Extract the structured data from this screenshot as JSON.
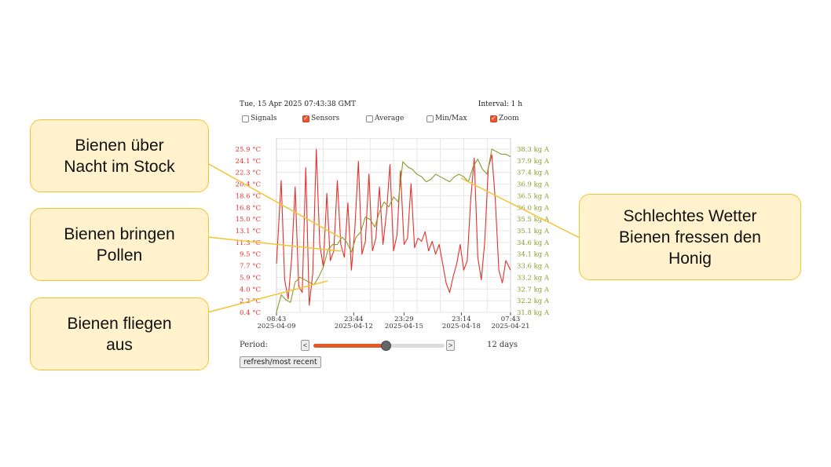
{
  "header": {
    "timestamp": "Tue, 15 Apr 2025 07:43:38 GMT",
    "interval": "Interval: 1 h"
  },
  "options": [
    {
      "label": "Signals",
      "checked": false
    },
    {
      "label": "Sensors",
      "checked": true
    },
    {
      "label": "Average",
      "checked": false
    },
    {
      "label": "Min/Max",
      "checked": false
    },
    {
      "label": "Zoom",
      "checked": true
    }
  ],
  "controls": {
    "period_label": "Period:",
    "prev": "<",
    "next": ">",
    "days": "12 days",
    "slider_fraction": 0.55,
    "refresh": "refresh/most recent"
  },
  "callouts": {
    "night": "Bienen über\nNacht im Stock",
    "pollen": "Bienen bringen\nPollen",
    "fly": "Bienen fliegen\naus",
    "weather": "Schlechtes Wetter\nBienen fressen den\nHonig"
  },
  "chart_data": {
    "type": "line",
    "title": "",
    "colors": {
      "temperature": "#e4302b",
      "weight": "#8a9a2a",
      "grid": "#e6e6e6"
    },
    "y_left_ticks": [
      "25.9 °C",
      "24.1 °C",
      "22.3 °C",
      "20.4 °C",
      "18.6 °C",
      "16.8 °C",
      "15.0 °C",
      "13.1 °C",
      "11.3 °C",
      "9.5 °C",
      "7.7 °C",
      "5.9 °C",
      "4.0 °C",
      "2.2 °C",
      "0.4 °C"
    ],
    "y_right_ticks": [
      "38.3 kg A",
      "37.9 kg A",
      "37.4 kg A",
      "36.9 kg A",
      "36.5 kg A",
      "36.0 kg A",
      "35.5 kg A",
      "35.1 kg A",
      "34.6 kg A",
      "34.1 kg A",
      "33.6 kg A",
      "33.2 kg A",
      "32.7 kg A",
      "32.2 kg A",
      "31.8 kg A"
    ],
    "x_ticks": [
      {
        "t": 0,
        "time": "08:43",
        "date": "2025-04-09"
      },
      {
        "t": 0.33,
        "time": "23:44",
        "date": "2025-04-12"
      },
      {
        "t": 0.545,
        "time": "23:29",
        "date": "2025-04-15"
      },
      {
        "t": 0.79,
        "time": "23:14",
        "date": "2025-04-18"
      },
      {
        "t": 1,
        "time": "07:43",
        "date": "2025-04-21"
      }
    ],
    "ylim_temp": [
      0.4,
      25.9
    ],
    "ylim_weight": [
      31.8,
      38.3
    ],
    "series": [
      {
        "key": "temperature",
        "unit": "°C",
        "x": [
          0,
          0.02,
          0.035,
          0.05,
          0.065,
          0.08,
          0.095,
          0.11,
          0.125,
          0.14,
          0.155,
          0.17,
          0.185,
          0.2,
          0.215,
          0.23,
          0.245,
          0.26,
          0.275,
          0.29,
          0.305,
          0.32,
          0.335,
          0.35,
          0.365,
          0.38,
          0.395,
          0.41,
          0.425,
          0.44,
          0.455,
          0.47,
          0.485,
          0.5,
          0.515,
          0.53,
          0.545,
          0.56,
          0.575,
          0.59,
          0.605,
          0.62,
          0.635,
          0.65,
          0.665,
          0.68,
          0.695,
          0.71,
          0.725,
          0.74,
          0.755,
          0.77,
          0.785,
          0.8,
          0.815,
          0.83,
          0.845,
          0.86,
          0.875,
          0.89,
          0.905,
          0.92,
          0.935,
          0.95,
          0.965,
          0.98,
          1
        ],
        "values": [
          8.0,
          21.0,
          5.5,
          2.5,
          9.0,
          20.0,
          4.5,
          3.5,
          23.0,
          1.5,
          6.5,
          25.9,
          11.0,
          7.5,
          19.0,
          8.5,
          10.0,
          21.0,
          11.0,
          9.0,
          17.5,
          7.0,
          13.5,
          24.0,
          9.5,
          11.5,
          22.0,
          10.0,
          12.0,
          20.0,
          11.0,
          16.0,
          23.5,
          10.0,
          12.5,
          22.5,
          11.0,
          12.0,
          20.5,
          10.5,
          12.0,
          11.5,
          13.0,
          10.0,
          11.5,
          9.5,
          11.0,
          8.0,
          5.0,
          3.5,
          6.0,
          8.0,
          11.0,
          7.0,
          8.5,
          18.0,
          24.5,
          9.0,
          5.5,
          11.5,
          23.0,
          25.0,
          18.0,
          7.0,
          5.0,
          8.5,
          7.0
        ]
      },
      {
        "key": "weight",
        "unit": "kg",
        "x": [
          0,
          0.02,
          0.04,
          0.06,
          0.08,
          0.1,
          0.12,
          0.14,
          0.16,
          0.18,
          0.2,
          0.22,
          0.24,
          0.26,
          0.28,
          0.3,
          0.32,
          0.34,
          0.36,
          0.38,
          0.4,
          0.42,
          0.44,
          0.46,
          0.48,
          0.5,
          0.52,
          0.54,
          0.56,
          0.58,
          0.6,
          0.62,
          0.64,
          0.66,
          0.68,
          0.7,
          0.72,
          0.74,
          0.76,
          0.78,
          0.8,
          0.82,
          0.84,
          0.86,
          0.88,
          0.9,
          0.92,
          0.94,
          0.96,
          0.98,
          1
        ],
        "values": [
          31.8,
          32.5,
          32.3,
          32.2,
          33.0,
          33.2,
          33.1,
          33.0,
          32.9,
          33.2,
          33.6,
          34.3,
          34.5,
          34.5,
          34.8,
          34.6,
          34.2,
          34.8,
          35.0,
          35.6,
          35.5,
          35.2,
          35.8,
          36.2,
          36.0,
          36.4,
          36.2,
          37.8,
          37.6,
          37.5,
          37.3,
          37.2,
          37.0,
          37.1,
          37.3,
          37.2,
          37.1,
          37.0,
          37.2,
          37.3,
          37.2,
          37.0,
          37.6,
          37.9,
          37.5,
          37.3,
          38.3,
          38.2,
          38.1,
          38.1,
          38.0
        ]
      }
    ]
  }
}
